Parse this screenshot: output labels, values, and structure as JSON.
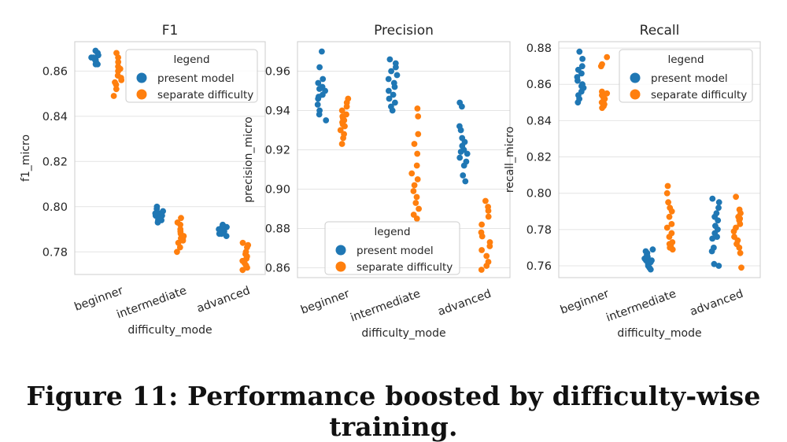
{
  "caption": "Figure 11: Performance boosted by difficulty-wise training.",
  "colors": {
    "present_model": "#1f77b4",
    "separate_difficulty": "#ff7f0e",
    "grid": "#e4e4e4",
    "spine": "#cccccc"
  },
  "chart_data": [
    {
      "type": "scatter",
      "subtype": "strip",
      "title": "F1",
      "xlabel": "difficulty_mode",
      "ylabel": "f1_micro",
      "categories": [
        "beginner",
        "intermediate",
        "advanced"
      ],
      "ylim": [
        0.77,
        0.873
      ],
      "yticks": [
        0.78,
        0.8,
        0.82,
        0.84,
        0.86
      ],
      "ytick_labels": [
        "0.78",
        "0.80",
        "0.82",
        "0.84",
        "0.86"
      ],
      "grid": true,
      "legend": {
        "title": "legend",
        "position": "top-right",
        "entries": [
          "present model",
          "separate difficulty"
        ]
      },
      "series": [
        {
          "name": "present model",
          "color": "#1f77b4",
          "values": [
            [
              0.863,
              0.864,
              0.865,
              0.866,
              0.867,
              0.868,
              0.869,
              0.865,
              0.863,
              0.866
            ],
            [
              0.793,
              0.794,
              0.795,
              0.796,
              0.797,
              0.798,
              0.799,
              0.8,
              0.794,
              0.796,
              0.795,
              0.797
            ],
            [
              0.787,
              0.788,
              0.789,
              0.79,
              0.791,
              0.792,
              0.788,
              0.79,
              0.789,
              0.791
            ]
          ]
        },
        {
          "name": "separate difficulty",
          "color": "#ff7f0e",
          "values": [
            [
              0.849,
              0.852,
              0.854,
              0.856,
              0.858,
              0.86,
              0.862,
              0.864,
              0.866,
              0.868,
              0.857,
              0.861,
              0.855
            ],
            [
              0.78,
              0.782,
              0.784,
              0.785,
              0.786,
              0.787,
              0.788,
              0.789,
              0.79,
              0.792,
              0.793,
              0.795,
              0.786
            ],
            [
              0.772,
              0.773,
              0.774,
              0.775,
              0.776,
              0.777,
              0.778,
              0.779,
              0.78,
              0.782,
              0.783,
              0.784
            ]
          ]
        }
      ]
    },
    {
      "type": "scatter",
      "subtype": "strip",
      "title": "Precision",
      "xlabel": "difficulty_mode",
      "ylabel": "precision_micro",
      "categories": [
        "beginner",
        "intermediate",
        "advanced"
      ],
      "ylim": [
        0.855,
        0.975
      ],
      "yticks": [
        0.86,
        0.88,
        0.9,
        0.92,
        0.94,
        0.96
      ],
      "ytick_labels": [
        "0.86",
        "0.88",
        "0.90",
        "0.92",
        "0.94",
        "0.96"
      ],
      "grid": true,
      "legend": {
        "title": "legend",
        "position": "bottom-left",
        "entries": [
          "present model",
          "separate difficulty"
        ]
      },
      "series": [
        {
          "name": "present model",
          "color": "#1f77b4",
          "values": [
            [
              0.935,
              0.938,
              0.94,
              0.943,
              0.946,
              0.948,
              0.95,
              0.952,
              0.954,
              0.956,
              0.962,
              0.97,
              0.947,
              0.951
            ],
            [
              0.94,
              0.942,
              0.944,
              0.946,
              0.948,
              0.95,
              0.952,
              0.954,
              0.956,
              0.958,
              0.96,
              0.962,
              0.964,
              0.966
            ],
            [
              0.904,
              0.907,
              0.912,
              0.914,
              0.916,
              0.918,
              0.92,
              0.922,
              0.924,
              0.926,
              0.93,
              0.932,
              0.942,
              0.944,
              0.919
            ]
          ]
        },
        {
          "name": "separate difficulty",
          "color": "#ff7f0e",
          "values": [
            [
              0.923,
              0.926,
              0.928,
              0.93,
              0.932,
              0.934,
              0.935,
              0.936,
              0.937,
              0.938,
              0.94,
              0.942,
              0.944,
              0.946,
              0.933
            ],
            [
              0.885,
              0.887,
              0.89,
              0.893,
              0.896,
              0.899,
              0.902,
              0.905,
              0.908,
              0.912,
              0.918,
              0.923,
              0.928,
              0.937,
              0.941
            ],
            [
              0.859,
              0.861,
              0.863,
              0.866,
              0.869,
              0.871,
              0.873,
              0.876,
              0.878,
              0.882,
              0.886,
              0.889,
              0.891,
              0.894
            ]
          ]
        }
      ]
    },
    {
      "type": "scatter",
      "subtype": "strip",
      "title": "Recall",
      "xlabel": "difficulty_mode",
      "ylabel": "recall_micro",
      "categories": [
        "beginner",
        "intermediate",
        "advanced"
      ],
      "ylim": [
        0.7535,
        0.8835
      ],
      "yticks": [
        0.76,
        0.78,
        0.8,
        0.82,
        0.84,
        0.86,
        0.88
      ],
      "ytick_labels": [
        "0.76",
        "0.78",
        "0.80",
        "0.82",
        "0.84",
        "0.86",
        "0.88"
      ],
      "grid": true,
      "legend": {
        "title": "legend",
        "position": "top-right",
        "entries": [
          "present model",
          "separate difficulty"
        ]
      },
      "series": [
        {
          "name": "present model",
          "color": "#1f77b4",
          "values": [
            [
              0.85,
              0.852,
              0.854,
              0.856,
              0.858,
              0.86,
              0.862,
              0.864,
              0.866,
              0.868,
              0.87,
              0.874,
              0.878,
              0.859
            ],
            [
              0.758,
              0.759,
              0.76,
              0.761,
              0.762,
              0.763,
              0.764,
              0.765,
              0.766,
              0.767,
              0.768,
              0.769,
              0.763,
              0.765
            ],
            [
              0.76,
              0.761,
              0.768,
              0.77,
              0.775,
              0.776,
              0.778,
              0.78,
              0.782,
              0.785,
              0.787,
              0.789,
              0.792,
              0.795,
              0.797
            ]
          ]
        },
        {
          "name": "separate difficulty",
          "color": "#ff7f0e",
          "values": [
            [
              0.847,
              0.848,
              0.849,
              0.85,
              0.851,
              0.852,
              0.853,
              0.854,
              0.855,
              0.856,
              0.87,
              0.871,
              0.875
            ],
            [
              0.769,
              0.77,
              0.771,
              0.772,
              0.773,
              0.776,
              0.778,
              0.781,
              0.783,
              0.787,
              0.79,
              0.792,
              0.795,
              0.8,
              0.804
            ],
            [
              0.759,
              0.767,
              0.77,
              0.772,
              0.774,
              0.776,
              0.779,
              0.781,
              0.783,
              0.785,
              0.786,
              0.787,
              0.789,
              0.791,
              0.798
            ]
          ]
        }
      ]
    }
  ]
}
